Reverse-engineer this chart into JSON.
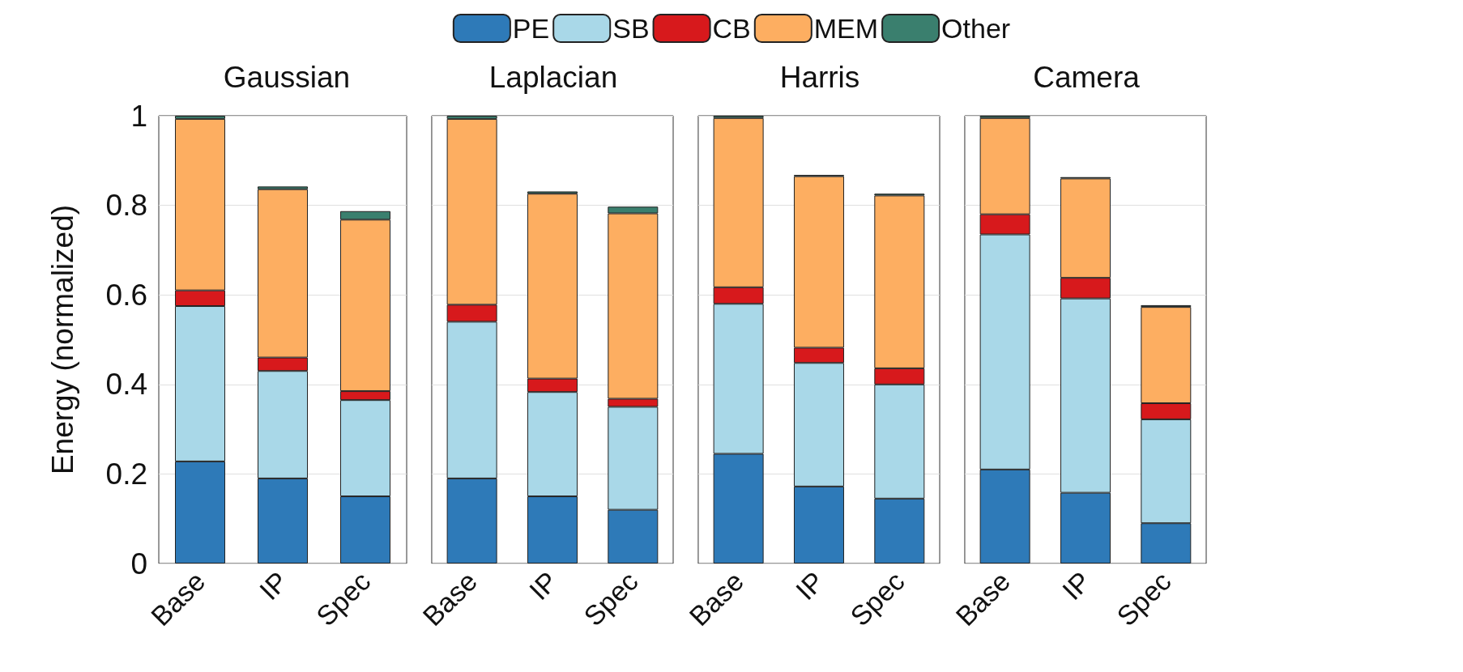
{
  "chart_data": [
    {
      "type": "bar",
      "title": "Gaussian",
      "ylabel": "Energy (normalized)",
      "categories": [
        "Base",
        "IP",
        "Spec"
      ],
      "stacked": true,
      "ylim": [
        0,
        1
      ],
      "yticks": [
        0,
        0.2,
        0.4,
        0.6,
        0.8,
        1
      ],
      "grid": "y",
      "legend": "top",
      "series": [
        {
          "name": "PE",
          "color": "#2e7ab8",
          "values": [
            0.228,
            0.19,
            0.15
          ]
        },
        {
          "name": "SB",
          "color": "#a9d8e8",
          "values": [
            0.347,
            0.24,
            0.215
          ]
        },
        {
          "name": "CB",
          "color": "#d7191c",
          "values": [
            0.035,
            0.03,
            0.02
          ]
        },
        {
          "name": "MEM",
          "color": "#fdae61",
          "values": [
            0.383,
            0.376,
            0.383
          ]
        },
        {
          "name": "Other",
          "color": "#3a7f6e",
          "values": [
            0.007,
            0.006,
            0.019
          ]
        }
      ]
    },
    {
      "type": "bar",
      "title": "Laplacian",
      "categories": [
        "Base",
        "IP",
        "Spec"
      ],
      "stacked": true,
      "ylim": [
        0,
        1
      ],
      "yticks": [
        0,
        0.2,
        0.4,
        0.6,
        0.8,
        1
      ],
      "grid": "y",
      "tick_labels": "x",
      "series": [
        {
          "color": "#2e7ab8",
          "values": [
            0.19,
            0.15,
            0.12
          ]
        },
        {
          "color": "#a9d8e8",
          "values": [
            0.35,
            0.233,
            0.23
          ]
        },
        {
          "color": "#d7191c",
          "values": [
            0.038,
            0.03,
            0.018
          ]
        },
        {
          "color": "#fdae61",
          "values": [
            0.415,
            0.413,
            0.414
          ]
        },
        {
          "color": "#3a7f6e",
          "values": [
            0.007,
            0.005,
            0.015
          ]
        }
      ]
    },
    {
      "type": "bar",
      "title": "Harris",
      "categories": [
        "Base",
        "IP",
        "Spec"
      ],
      "stacked": true,
      "ylim": [
        0,
        1
      ],
      "yticks": [
        0,
        0.2,
        0.4,
        0.6,
        0.8,
        1
      ],
      "grid": "y",
      "tick_labels": "x",
      "series": [
        {
          "color": "#2e7ab8",
          "values": [
            0.245,
            0.172,
            0.145
          ]
        },
        {
          "color": "#a9d8e8",
          "values": [
            0.335,
            0.276,
            0.255
          ]
        },
        {
          "color": "#d7191c",
          "values": [
            0.037,
            0.034,
            0.036
          ]
        },
        {
          "color": "#fdae61",
          "values": [
            0.378,
            0.383,
            0.386
          ]
        },
        {
          "color": "#3a7f6e",
          "values": [
            0.005,
            0.003,
            0.004
          ]
        }
      ]
    },
    {
      "type": "bar",
      "title": "Camera",
      "categories": [
        "Base",
        "IP",
        "Spec"
      ],
      "stacked": true,
      "ylim": [
        0,
        1
      ],
      "yticks": [
        0,
        0.2,
        0.4,
        0.6,
        0.8,
        1
      ],
      "grid": "y",
      "tick_labels": "x",
      "series": [
        {
          "color": "#2e7ab8",
          "values": [
            0.21,
            0.158,
            0.09
          ]
        },
        {
          "color": "#a9d8e8",
          "values": [
            0.525,
            0.434,
            0.232
          ]
        },
        {
          "color": "#d7191c",
          "values": [
            0.045,
            0.046,
            0.036
          ]
        },
        {
          "color": "#fdae61",
          "values": [
            0.215,
            0.222,
            0.215
          ]
        },
        {
          "color": "#3a7f6e",
          "values": [
            0.005,
            0.003,
            0.004
          ]
        }
      ]
    }
  ]
}
